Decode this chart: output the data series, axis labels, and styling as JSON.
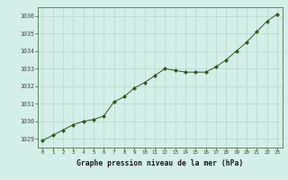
{
  "title": "Graphe pression niveau de la mer (hPa)",
  "background_color": "#d4eee8",
  "grid_color": "#b8d8cc",
  "line_color": "#2d5a1b",
  "marker_color": "#2d5a1b",
  "xlim": [
    -0.5,
    23.5
  ],
  "ylim": [
    1028.5,
    1036.5
  ],
  "yticks": [
    1029,
    1030,
    1031,
    1032,
    1033,
    1034,
    1035,
    1036
  ],
  "xticks": [
    0,
    1,
    2,
    3,
    4,
    5,
    6,
    7,
    8,
    9,
    10,
    11,
    12,
    13,
    14,
    15,
    16,
    17,
    18,
    19,
    20,
    21,
    22,
    23
  ],
  "hours": [
    0,
    1,
    2,
    3,
    4,
    5,
    6,
    7,
    8,
    9,
    10,
    11,
    12,
    13,
    14,
    15,
    16,
    17,
    18,
    19,
    20,
    21,
    22,
    23
  ],
  "pressures": [
    1028.9,
    1029.2,
    1029.5,
    1029.8,
    1030.0,
    1030.1,
    1030.3,
    1031.1,
    1031.4,
    1031.9,
    1032.2,
    1032.6,
    1033.0,
    1032.9,
    1032.8,
    1032.8,
    1032.8,
    1033.1,
    1033.5,
    1034.0,
    1034.5,
    1035.1,
    1035.7,
    1036.1
  ]
}
